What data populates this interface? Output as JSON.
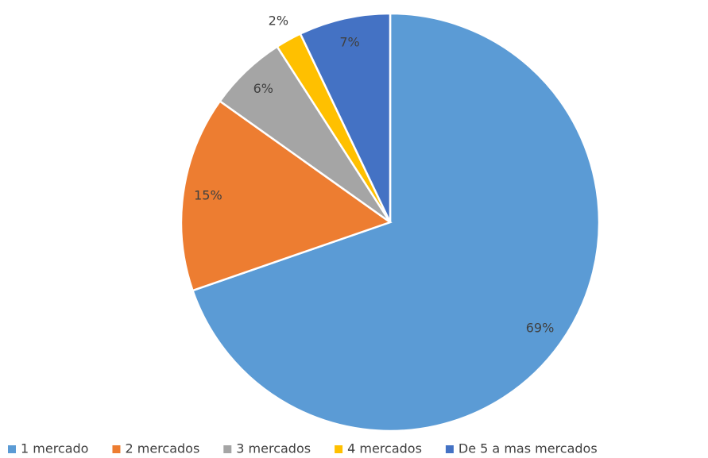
{
  "chart_data": {
    "type": "pie",
    "categories": [
      "1 mercado",
      "2 mercados",
      "3 mercados",
      "4 mercados",
      "De 5 a mas mercados"
    ],
    "values": [
      69,
      15,
      6,
      2,
      7
    ],
    "value_labels": [
      "69%",
      "15%",
      "6%",
      "2%",
      "7%"
    ],
    "colors": [
      "#5b9bd5",
      "#ed7d31",
      "#a5a5a5",
      "#ffc000",
      "#4472c4"
    ],
    "legend": "bottom"
  }
}
